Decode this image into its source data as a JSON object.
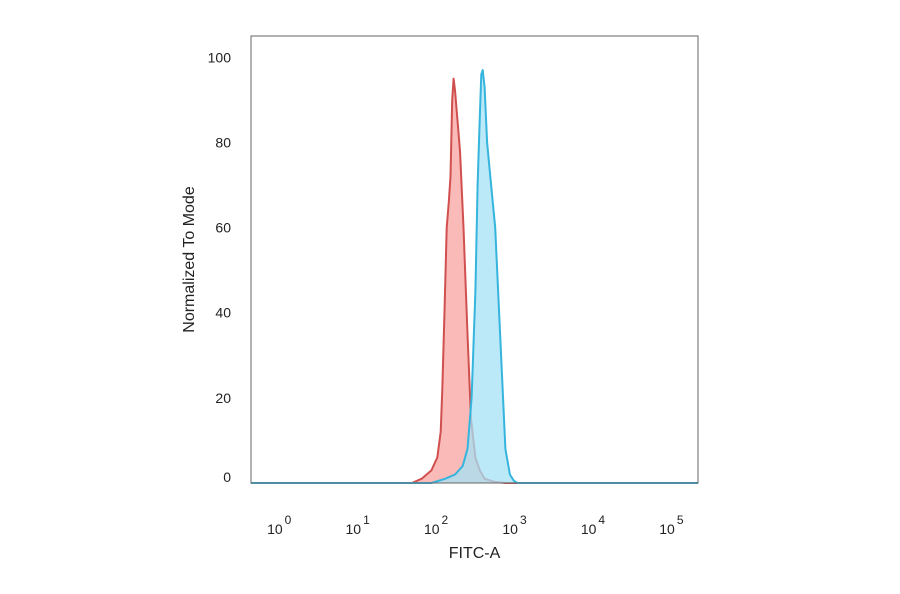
{
  "chart_data": {
    "type": "area",
    "title": "",
    "xlabel": "FITC-A",
    "ylabel": "Normalized To Mode",
    "x_scale": "log",
    "xlim": [
      0.4,
      200000
    ],
    "ylim": [
      0,
      105
    ],
    "x_ticks": [
      {
        "value": 1,
        "base": "10",
        "exp": "0"
      },
      {
        "value": 10,
        "base": "10",
        "exp": "1"
      },
      {
        "value": 100,
        "base": "10",
        "exp": "2"
      },
      {
        "value": 1000,
        "base": "10",
        "exp": "3"
      },
      {
        "value": 10000,
        "base": "10",
        "exp": "4"
      },
      {
        "value": 100000,
        "base": "10",
        "exp": "5"
      }
    ],
    "y_ticks": [
      "0",
      "20",
      "40",
      "60",
      "80",
      "100"
    ],
    "grid": false,
    "series": [
      {
        "color": "#d0504f",
        "fill": "#f7a3a0",
        "x": [
          0.4,
          45,
          60,
          80,
          95,
          105,
          110,
          118,
          125,
          133,
          140,
          147,
          153,
          160,
          170,
          185,
          205,
          230,
          255,
          290,
          330,
          380,
          500,
          700,
          200000
        ],
        "y": [
          0,
          0,
          1,
          3,
          6,
          12,
          22,
          42,
          60,
          66,
          72,
          90,
          95,
          92,
          86,
          78,
          60,
          35,
          15,
          6,
          3,
          1,
          0.3,
          0,
          0
        ]
      },
      {
        "color": "#35b4dd",
        "fill": "#a6e2f5",
        "x": [
          0.4,
          80,
          120,
          160,
          200,
          230,
          260,
          290,
          310,
          330,
          345,
          360,
          380,
          410,
          450,
          520,
          600,
          700,
          800,
          900,
          1000,
          200000
        ],
        "y": [
          0,
          0,
          1,
          2,
          4,
          8,
          20,
          45,
          70,
          86,
          96,
          97,
          93,
          80,
          72,
          60,
          35,
          8,
          2,
          0.5,
          0,
          0
        ]
      }
    ]
  }
}
